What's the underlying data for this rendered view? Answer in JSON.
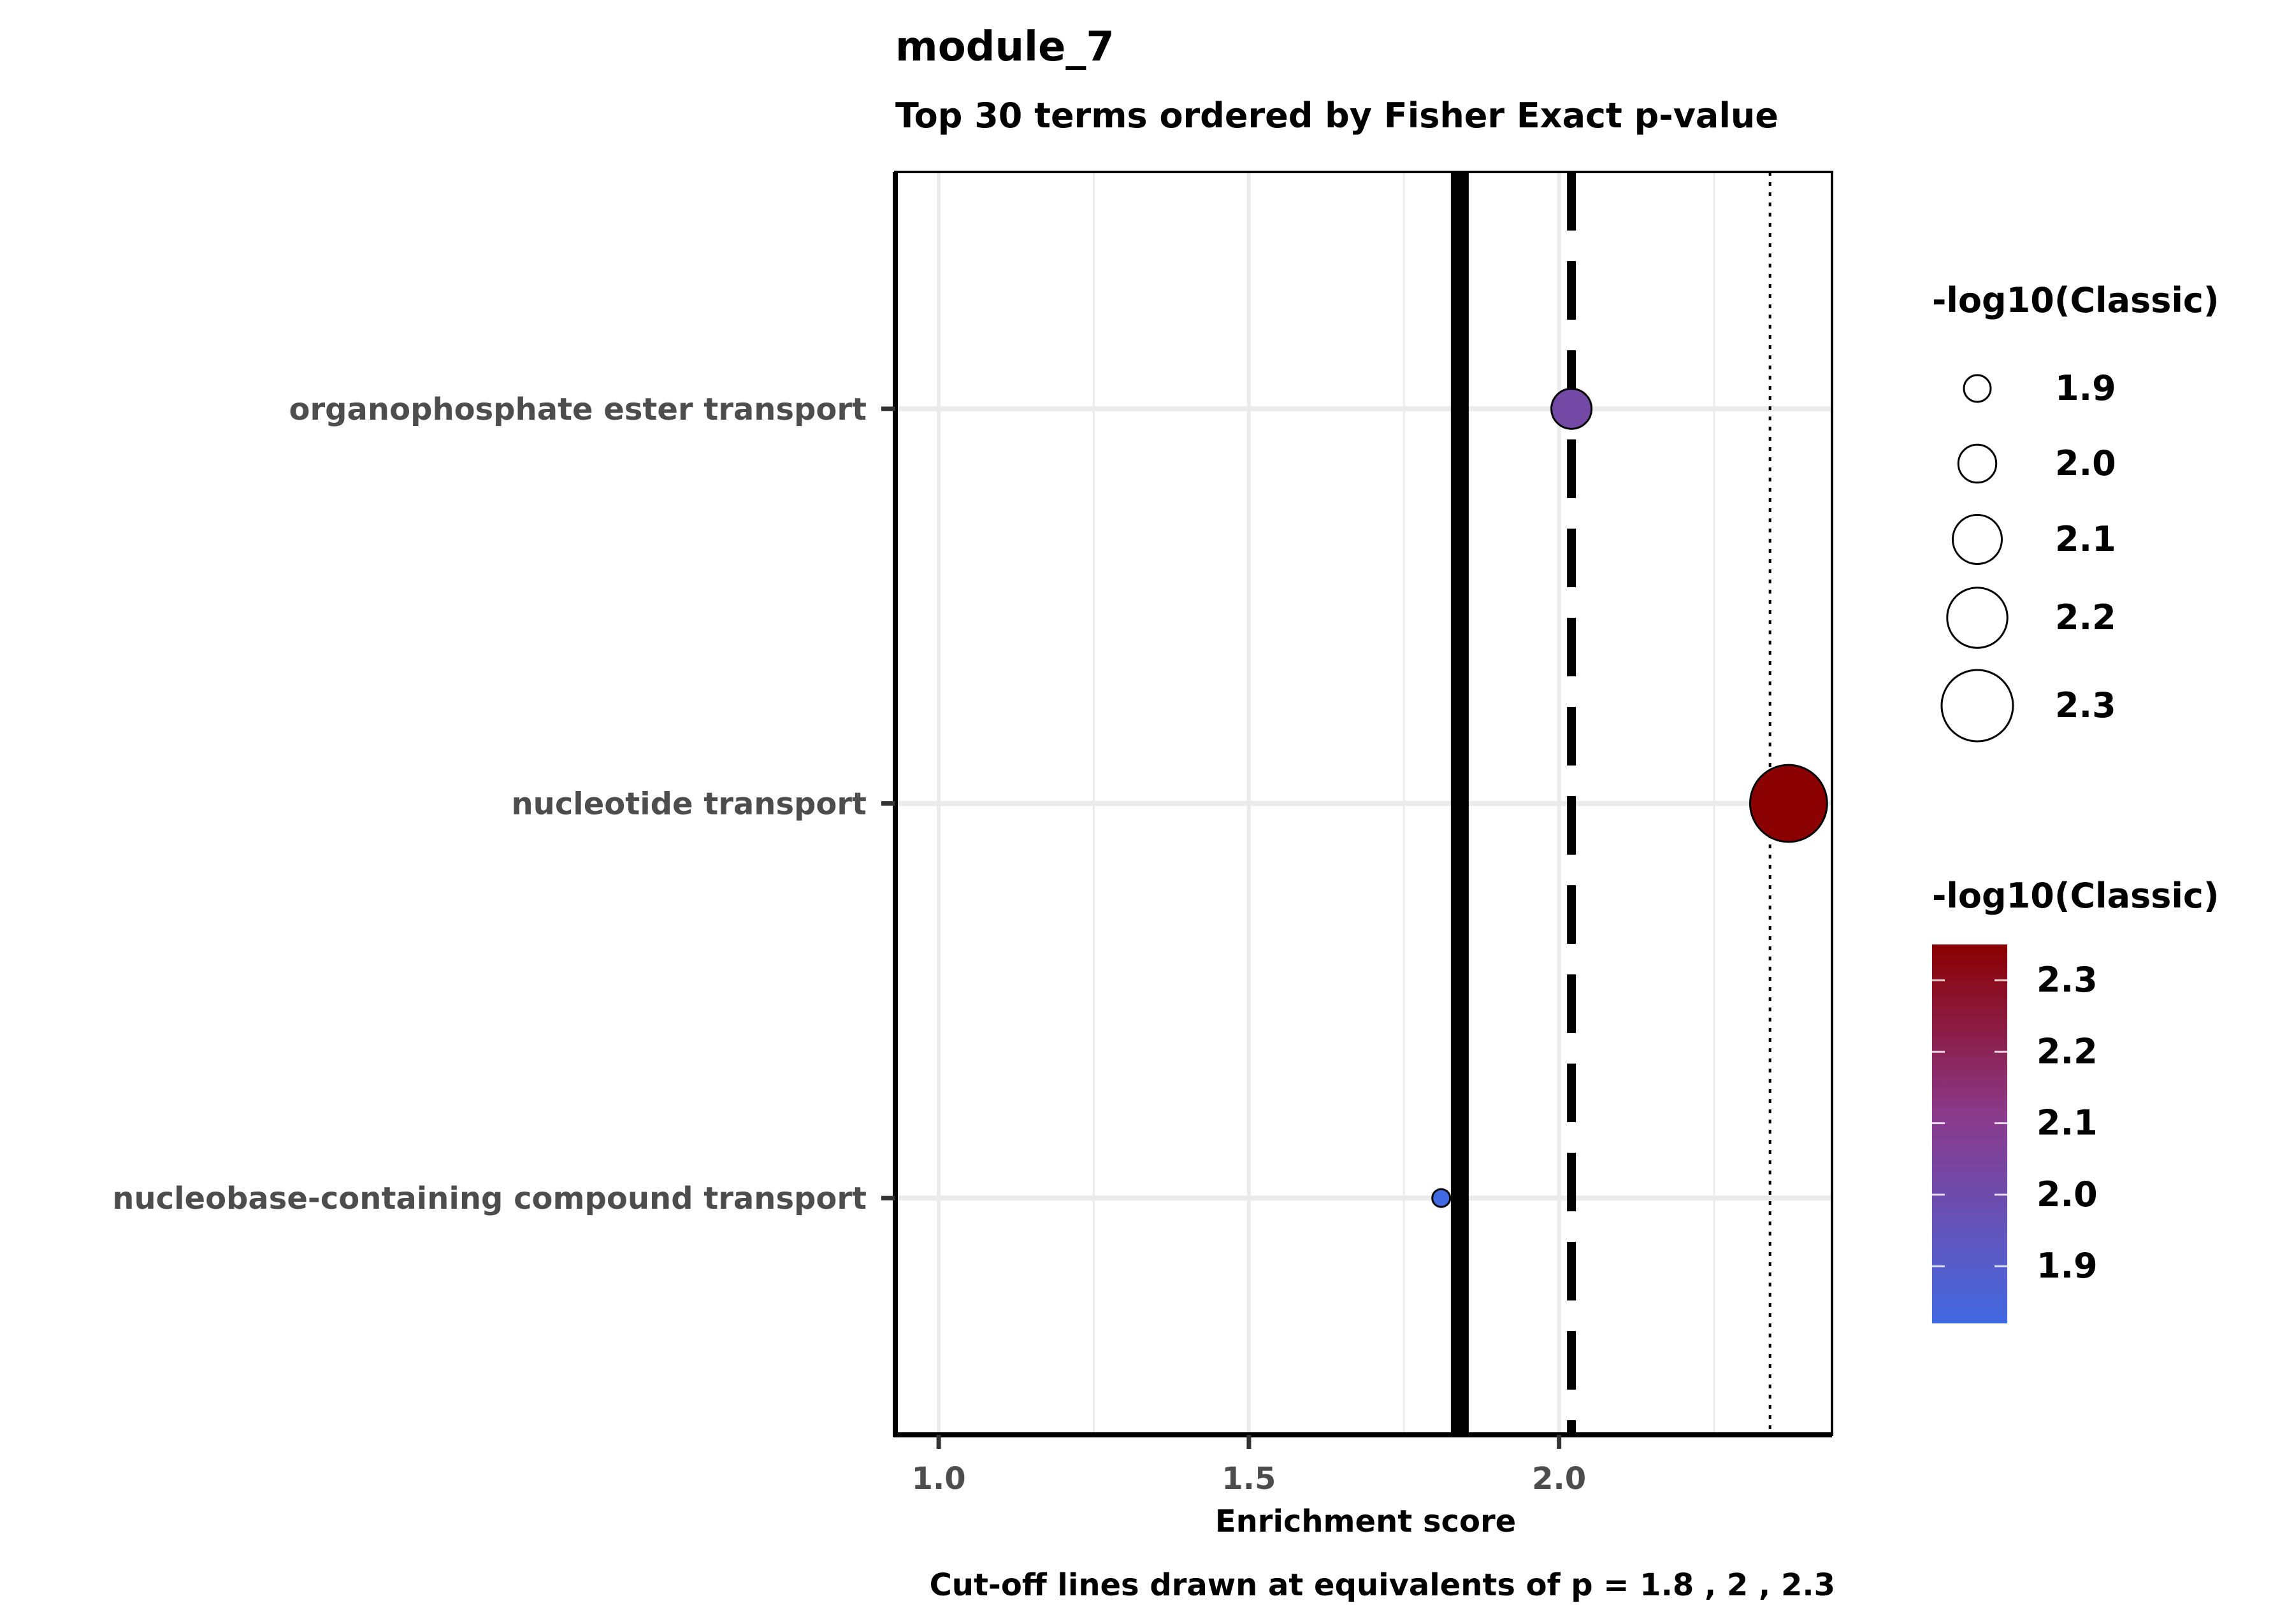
{
  "chart_data": {
    "type": "scatter",
    "title": "module_7",
    "subtitle": "Top 30 terms ordered by Fisher Exact p-value",
    "xlabel": "Enrichment score",
    "ylabel": "",
    "caption": "Cut-off lines drawn at equivalents of p = 1.8 , 2 , 2.3",
    "xlim": [
      0.93,
      2.44
    ],
    "x_ticks": [
      1.0,
      1.5,
      2.0
    ],
    "x_tick_labels": [
      "1.0",
      "1.5",
      "2.0"
    ],
    "categories": [
      "organophosphate ester transport",
      "nucleotide transport",
      "nucleobase-containing compound transport"
    ],
    "points": [
      {
        "term": "organophosphate ester transport",
        "x": 2.02,
        "classic": 2.02
      },
      {
        "term": "nucleotide transport",
        "x": 2.37,
        "classic": 2.35
      },
      {
        "term": "nucleobase-containing compound transport",
        "x": 1.81,
        "classic": 1.82
      }
    ],
    "cutoff_lines": [
      {
        "p": "1.8",
        "x": 1.84,
        "style": "solid"
      },
      {
        "p": "2",
        "x": 2.02,
        "style": "dashed"
      },
      {
        "p": "2.3",
        "x": 2.34,
        "style": "dotted"
      }
    ],
    "grid": true,
    "size_legend": {
      "title": "-log10(Classic)",
      "labels": [
        "1.9",
        "2.0",
        "2.1",
        "2.2",
        "2.3"
      ],
      "values": [
        1.9,
        2.0,
        2.1,
        2.2,
        2.3
      ]
    },
    "color_legend": {
      "title": "-log10(Classic)",
      "labels": [
        "2.3",
        "2.2",
        "2.1",
        "2.0",
        "1.9"
      ],
      "values": [
        2.3,
        2.2,
        2.1,
        2.0,
        1.9
      ],
      "range": [
        1.82,
        2.35
      ],
      "low_color": "#4169E1",
      "high_color": "#8B0000"
    },
    "legend_position": "right"
  }
}
